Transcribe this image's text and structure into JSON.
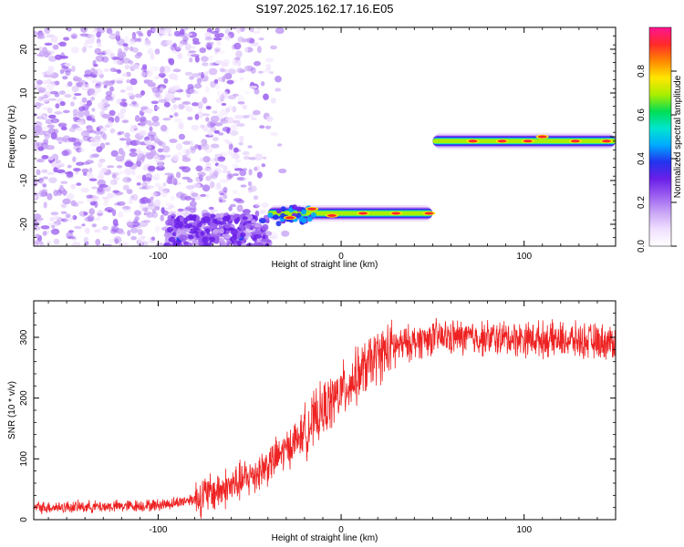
{
  "figure": {
    "title": "S197.2025.162.17.16.E05"
  },
  "chart_data": [
    {
      "type": "heatmap",
      "xlabel": "Height of straight line (km)",
      "ylabel": "Frequency (Hz)",
      "xlim": [
        -168,
        150
      ],
      "ylim": [
        -25,
        25
      ],
      "xticks": [
        -100,
        0,
        100
      ],
      "yticks": [
        -20,
        -10,
        0,
        10,
        20
      ],
      "grid": false,
      "colorbar": {
        "label": "Normalized spectral amplitude",
        "range": [
          0,
          1
        ],
        "ticks": [
          "0.0",
          "0.2",
          "0.4",
          "0.6",
          "0.8"
        ],
        "colormap": [
          "#ffffff",
          "#f0e0ff",
          "#c9a5f5",
          "#9b5ef0",
          "#6a1fe8",
          "#2233ee",
          "#00aaff",
          "#00e5d0",
          "#00dd55",
          "#aaee00",
          "#ffe600",
          "#ff8800",
          "#ff2a2a",
          "#ff1493"
        ]
      },
      "features": {
        "noise_region_x": [
          -168,
          -40
        ],
        "noise_freq_range": [
          -25,
          25
        ],
        "dense_noise_x": [
          -95,
          -40
        ],
        "dense_noise_freq": [
          -25,
          -18
        ],
        "low_band": {
          "x": [
            -40,
            50
          ],
          "frequency": -17.5
        },
        "high_band": {
          "x": [
            50,
            150
          ],
          "frequency": -1
        },
        "peak_locations": [
          [
            -28,
            -18.5
          ],
          [
            -16,
            -16.5
          ],
          [
            -5,
            -18
          ],
          [
            12,
            -17.5
          ],
          [
            30,
            -17.5
          ],
          [
            48,
            -17.5
          ],
          [
            72,
            -1
          ],
          [
            88,
            -1
          ],
          [
            102,
            -1
          ],
          [
            110,
            0
          ],
          [
            128,
            -1
          ],
          [
            145,
            -1
          ]
        ]
      }
    },
    {
      "type": "line",
      "xlabel": "Height of straight line (km)",
      "ylabel": "SNR (10 * v/v)",
      "xlim": [
        -168,
        150
      ],
      "ylim": [
        0,
        360
      ],
      "xticks": [
        -100,
        0,
        100
      ],
      "yticks": [
        0,
        100,
        200,
        300
      ],
      "grid": false,
      "series": [
        {
          "color": "#ee2222",
          "trend": {
            "x": [
              -168,
              -120,
              -100,
              -90,
              -80,
              -70,
              -60,
              -50,
              -40,
              -30,
              -20,
              -10,
              0,
              10,
              20,
              30,
              50,
              100,
              150
            ],
            "y": [
              20,
              22,
              24,
              28,
              35,
              45,
              55,
              70,
              90,
              115,
              145,
              180,
              210,
              240,
              270,
              285,
              300,
              298,
              292
            ]
          }
        }
      ]
    }
  ]
}
